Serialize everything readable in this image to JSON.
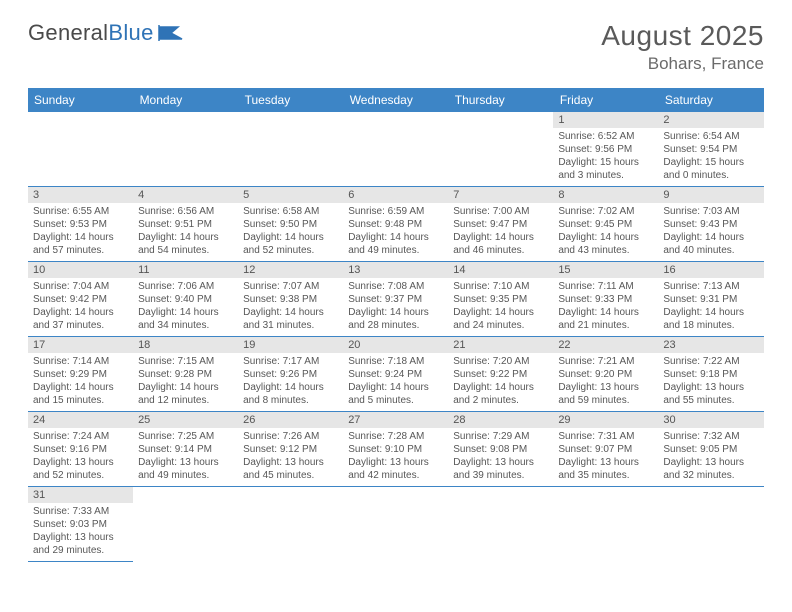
{
  "logo": {
    "text1": "General",
    "text2": "Blue"
  },
  "header": {
    "month": "August 2025",
    "location": "Bohars, France"
  },
  "colors": {
    "header_bg": "#3d85c6",
    "daynum_bg": "#e6e6e6",
    "border": "#3d85c6"
  },
  "weekdays": [
    "Sunday",
    "Monday",
    "Tuesday",
    "Wednesday",
    "Thursday",
    "Friday",
    "Saturday"
  ],
  "weeks": [
    [
      null,
      null,
      null,
      null,
      null,
      {
        "n": "1",
        "sr": "Sunrise: 6:52 AM",
        "ss": "Sunset: 9:56 PM",
        "dl": "Daylight: 15 hours and 3 minutes."
      },
      {
        "n": "2",
        "sr": "Sunrise: 6:54 AM",
        "ss": "Sunset: 9:54 PM",
        "dl": "Daylight: 15 hours and 0 minutes."
      }
    ],
    [
      {
        "n": "3",
        "sr": "Sunrise: 6:55 AM",
        "ss": "Sunset: 9:53 PM",
        "dl": "Daylight: 14 hours and 57 minutes."
      },
      {
        "n": "4",
        "sr": "Sunrise: 6:56 AM",
        "ss": "Sunset: 9:51 PM",
        "dl": "Daylight: 14 hours and 54 minutes."
      },
      {
        "n": "5",
        "sr": "Sunrise: 6:58 AM",
        "ss": "Sunset: 9:50 PM",
        "dl": "Daylight: 14 hours and 52 minutes."
      },
      {
        "n": "6",
        "sr": "Sunrise: 6:59 AM",
        "ss": "Sunset: 9:48 PM",
        "dl": "Daylight: 14 hours and 49 minutes."
      },
      {
        "n": "7",
        "sr": "Sunrise: 7:00 AM",
        "ss": "Sunset: 9:47 PM",
        "dl": "Daylight: 14 hours and 46 minutes."
      },
      {
        "n": "8",
        "sr": "Sunrise: 7:02 AM",
        "ss": "Sunset: 9:45 PM",
        "dl": "Daylight: 14 hours and 43 minutes."
      },
      {
        "n": "9",
        "sr": "Sunrise: 7:03 AM",
        "ss": "Sunset: 9:43 PM",
        "dl": "Daylight: 14 hours and 40 minutes."
      }
    ],
    [
      {
        "n": "10",
        "sr": "Sunrise: 7:04 AM",
        "ss": "Sunset: 9:42 PM",
        "dl": "Daylight: 14 hours and 37 minutes."
      },
      {
        "n": "11",
        "sr": "Sunrise: 7:06 AM",
        "ss": "Sunset: 9:40 PM",
        "dl": "Daylight: 14 hours and 34 minutes."
      },
      {
        "n": "12",
        "sr": "Sunrise: 7:07 AM",
        "ss": "Sunset: 9:38 PM",
        "dl": "Daylight: 14 hours and 31 minutes."
      },
      {
        "n": "13",
        "sr": "Sunrise: 7:08 AM",
        "ss": "Sunset: 9:37 PM",
        "dl": "Daylight: 14 hours and 28 minutes."
      },
      {
        "n": "14",
        "sr": "Sunrise: 7:10 AM",
        "ss": "Sunset: 9:35 PM",
        "dl": "Daylight: 14 hours and 24 minutes."
      },
      {
        "n": "15",
        "sr": "Sunrise: 7:11 AM",
        "ss": "Sunset: 9:33 PM",
        "dl": "Daylight: 14 hours and 21 minutes."
      },
      {
        "n": "16",
        "sr": "Sunrise: 7:13 AM",
        "ss": "Sunset: 9:31 PM",
        "dl": "Daylight: 14 hours and 18 minutes."
      }
    ],
    [
      {
        "n": "17",
        "sr": "Sunrise: 7:14 AM",
        "ss": "Sunset: 9:29 PM",
        "dl": "Daylight: 14 hours and 15 minutes."
      },
      {
        "n": "18",
        "sr": "Sunrise: 7:15 AM",
        "ss": "Sunset: 9:28 PM",
        "dl": "Daylight: 14 hours and 12 minutes."
      },
      {
        "n": "19",
        "sr": "Sunrise: 7:17 AM",
        "ss": "Sunset: 9:26 PM",
        "dl": "Daylight: 14 hours and 8 minutes."
      },
      {
        "n": "20",
        "sr": "Sunrise: 7:18 AM",
        "ss": "Sunset: 9:24 PM",
        "dl": "Daylight: 14 hours and 5 minutes."
      },
      {
        "n": "21",
        "sr": "Sunrise: 7:20 AM",
        "ss": "Sunset: 9:22 PM",
        "dl": "Daylight: 14 hours and 2 minutes."
      },
      {
        "n": "22",
        "sr": "Sunrise: 7:21 AM",
        "ss": "Sunset: 9:20 PM",
        "dl": "Daylight: 13 hours and 59 minutes."
      },
      {
        "n": "23",
        "sr": "Sunrise: 7:22 AM",
        "ss": "Sunset: 9:18 PM",
        "dl": "Daylight: 13 hours and 55 minutes."
      }
    ],
    [
      {
        "n": "24",
        "sr": "Sunrise: 7:24 AM",
        "ss": "Sunset: 9:16 PM",
        "dl": "Daylight: 13 hours and 52 minutes."
      },
      {
        "n": "25",
        "sr": "Sunrise: 7:25 AM",
        "ss": "Sunset: 9:14 PM",
        "dl": "Daylight: 13 hours and 49 minutes."
      },
      {
        "n": "26",
        "sr": "Sunrise: 7:26 AM",
        "ss": "Sunset: 9:12 PM",
        "dl": "Daylight: 13 hours and 45 minutes."
      },
      {
        "n": "27",
        "sr": "Sunrise: 7:28 AM",
        "ss": "Sunset: 9:10 PM",
        "dl": "Daylight: 13 hours and 42 minutes."
      },
      {
        "n": "28",
        "sr": "Sunrise: 7:29 AM",
        "ss": "Sunset: 9:08 PM",
        "dl": "Daylight: 13 hours and 39 minutes."
      },
      {
        "n": "29",
        "sr": "Sunrise: 7:31 AM",
        "ss": "Sunset: 9:07 PM",
        "dl": "Daylight: 13 hours and 35 minutes."
      },
      {
        "n": "30",
        "sr": "Sunrise: 7:32 AM",
        "ss": "Sunset: 9:05 PM",
        "dl": "Daylight: 13 hours and 32 minutes."
      }
    ],
    [
      {
        "n": "31",
        "sr": "Sunrise: 7:33 AM",
        "ss": "Sunset: 9:03 PM",
        "dl": "Daylight: 13 hours and 29 minutes."
      },
      null,
      null,
      null,
      null,
      null,
      null
    ]
  ]
}
